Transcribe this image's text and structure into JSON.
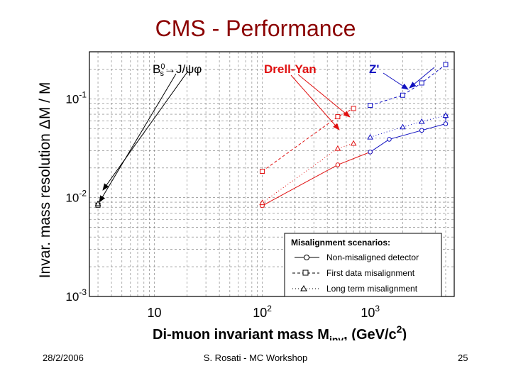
{
  "slide": {
    "title": "CMS - Performance",
    "footer_date": "28/2/2006",
    "footer_center": "S. Rosati - MC Workshop",
    "footer_page": "25"
  },
  "chart_data": {
    "type": "scatter",
    "xscale": "log",
    "yscale": "log",
    "xlim": [
      2.5,
      6000
    ],
    "ylim": [
      0.001,
      0.3
    ],
    "xlabel": "Di-muon invariant mass M",
    "xlabel_sub": "inv",
    "xlabel_unit_pre": ", (GeV/c",
    "xlabel_unit_sup": "2",
    "xlabel_unit_post": ")",
    "ylabel": "Invar. mass resolution  ΔM / M",
    "x_ticks": [
      {
        "value": 10,
        "label": "10",
        "sup": ""
      },
      {
        "value": 100,
        "label": "10",
        "sup": "2"
      },
      {
        "value": 1000,
        "label": "10",
        "sup": "3"
      }
    ],
    "y_ticks": [
      {
        "value": 0.1,
        "label": "10",
        "sup": "-1"
      },
      {
        "value": 0.01,
        "label": "10",
        "sup": "-2"
      },
      {
        "value": 0.001,
        "label": "10",
        "sup": "-3"
      }
    ],
    "grid": true,
    "annotations": [
      {
        "label": "Bs0→J/ψφ",
        "color": "#000000"
      },
      {
        "label": "Drell-Yan",
        "color": "#e01010"
      },
      {
        "label": "Z'",
        "color": "#1010c0"
      }
    ],
    "legend": {
      "title": "Misalignment scenarios:",
      "entries": [
        "Non-misaligned detector",
        "First data misalignment",
        "Long term misalignment"
      ]
    },
    "series": [
      {
        "name": "Non-misaligned detector",
        "marker": "circle",
        "points": [
          {
            "group": "Drell-Yan",
            "x": 100,
            "y": 0.0083
          },
          {
            "group": "Drell-Yan",
            "x": 500,
            "y": 0.0215
          },
          {
            "group": "Drell-Yan",
            "x": 1000,
            "y": 0.029
          },
          {
            "group": "Z'",
            "x": 1000,
            "y": 0.029
          },
          {
            "group": "Z'",
            "x": 1500,
            "y": 0.039
          },
          {
            "group": "Z'",
            "x": 3000,
            "y": 0.048
          },
          {
            "group": "Z'",
            "x": 5000,
            "y": 0.056
          },
          {
            "group": "Z'",
            "x": 5000,
            "y": 0.067
          }
        ]
      },
      {
        "name": "First data misalignment",
        "marker": "square",
        "points": [
          {
            "group": "Bs",
            "x": 3,
            "y": 0.0084
          },
          {
            "group": "Drell-Yan",
            "x": 100,
            "y": 0.0185
          },
          {
            "group": "Drell-Yan",
            "x": 500,
            "y": 0.066
          },
          {
            "group": "Drell-Yan",
            "x": 700,
            "y": 0.08
          },
          {
            "group": "Z'",
            "x": 1000,
            "y": 0.086
          },
          {
            "group": "Z'",
            "x": 2000,
            "y": 0.109
          },
          {
            "group": "Z'",
            "x": 3000,
            "y": 0.145
          },
          {
            "group": "Z'",
            "x": 5000,
            "y": 0.223
          }
        ]
      },
      {
        "name": "Long term misalignment",
        "marker": "triangle",
        "points": [
          {
            "group": "Bs",
            "x": 3,
            "y": 0.0087
          },
          {
            "group": "Drell-Yan",
            "x": 100,
            "y": 0.0089
          },
          {
            "group": "Drell-Yan",
            "x": 500,
            "y": 0.0315
          },
          {
            "group": "Drell-Yan",
            "x": 700,
            "y": 0.0355
          },
          {
            "group": "Z'",
            "x": 1000,
            "y": 0.041
          },
          {
            "group": "Z'",
            "x": 2000,
            "y": 0.052
          },
          {
            "group": "Z'",
            "x": 3000,
            "y": 0.059
          },
          {
            "group": "Z'",
            "x": 5000,
            "y": 0.068
          }
        ]
      }
    ]
  }
}
